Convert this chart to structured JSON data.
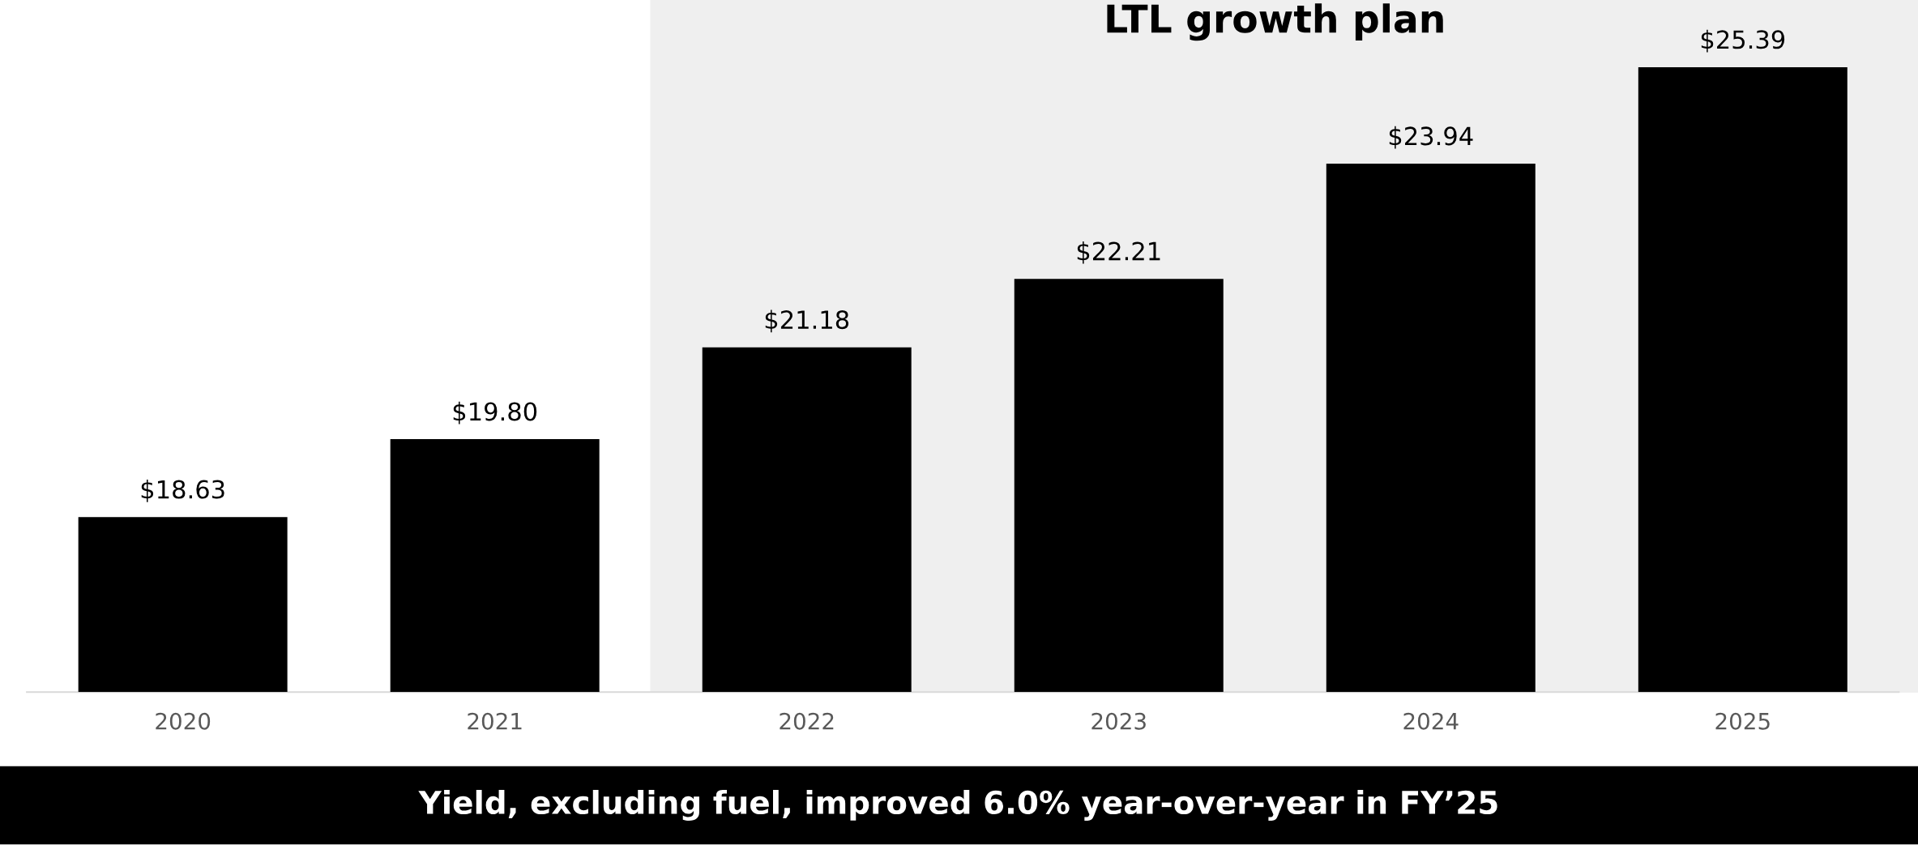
{
  "chart_data": {
    "type": "bar",
    "categories": [
      "2020",
      "2021",
      "2022",
      "2023",
      "2024",
      "2025"
    ],
    "values": [
      18.63,
      19.8,
      21.18,
      22.21,
      23.94,
      25.39
    ],
    "value_labels": [
      "$18.63",
      "$19.80",
      "$21.18",
      "$22.21",
      "$23.94",
      "$25.39"
    ],
    "color": "#000000",
    "ylim": [
      16.0,
      26.4
    ],
    "tick_labels": "x",
    "bands": [
      {
        "axis": "x",
        "from": "2022",
        "to": "2025",
        "label": "LTL growth plan",
        "color": "#efefef"
      }
    ],
    "annotations": [
      "Yield, excluding fuel, improved 6.0% year-over-year in FY’25"
    ],
    "grid": false,
    "legend": false
  }
}
